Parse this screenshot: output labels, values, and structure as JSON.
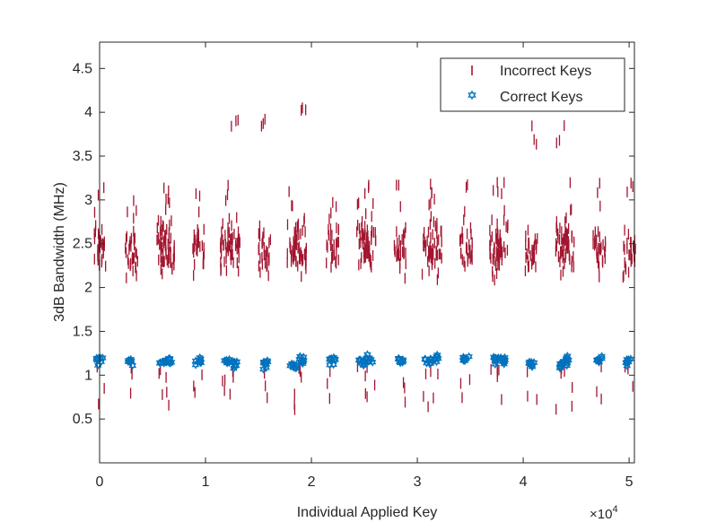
{
  "chart_data": {
    "type": "scatter",
    "title": "",
    "xlabel": "Individual Applied Key",
    "ylabel": "3dB Bandwidth (MHz)",
    "x_exponent_label": "×10",
    "x_exponent_power": "4",
    "xlim": [
      0,
      5.05
    ],
    "ylim": [
      0,
      4.8
    ],
    "x_ticks": [
      "0",
      "1",
      "2",
      "3",
      "4",
      "5"
    ],
    "y_ticks": [
      "0.5",
      "1",
      "1.5",
      "2",
      "2.5",
      "3",
      "3.5",
      "4",
      "4.5"
    ],
    "grid": false,
    "legend_position": "top-right",
    "clusters_x": [
      0.0,
      0.3,
      0.6,
      0.65,
      0.93,
      1.2,
      1.27,
      1.56,
      1.83,
      1.9,
      2.2,
      2.48,
      2.55,
      2.84,
      3.1,
      3.17,
      3.46,
      3.74,
      3.8,
      4.08,
      4.36,
      4.42,
      4.72,
      5.0
    ],
    "series": [
      {
        "name": "Incorrect Keys",
        "marker": "vertical-line",
        "color": "#A2142F",
        "center_y": [
          2.45,
          2.4,
          2.5,
          2.45,
          2.45,
          2.45,
          2.5,
          2.4,
          2.45,
          2.45,
          2.45,
          2.5,
          2.45,
          2.45,
          2.45,
          2.45,
          2.45,
          2.45,
          2.45,
          2.45,
          2.5,
          2.45,
          2.45,
          2.4
        ],
        "range": [
          [
            0.65,
            3.2
          ],
          [
            0.6,
            3.2
          ],
          [
            0.6,
            3.2
          ],
          [
            0.6,
            3.2
          ],
          [
            0.6,
            3.2
          ],
          [
            0.6,
            3.2
          ],
          [
            0.6,
            3.95
          ],
          [
            0.6,
            3.95
          ],
          [
            0.6,
            3.2
          ],
          [
            0.6,
            4.1
          ],
          [
            0.6,
            3.2
          ],
          [
            0.6,
            3.2
          ],
          [
            0.6,
            3.2
          ],
          [
            0.6,
            3.2
          ],
          [
            0.6,
            3.2
          ],
          [
            0.6,
            3.2
          ],
          [
            0.6,
            3.2
          ],
          [
            0.6,
            3.2
          ],
          [
            0.6,
            3.2
          ],
          [
            0.6,
            3.95
          ],
          [
            0.6,
            3.95
          ],
          [
            0.6,
            3.2
          ],
          [
            0.6,
            3.2
          ],
          [
            0.6,
            3.25
          ]
        ]
      },
      {
        "name": "Correct Keys",
        "marker": "hexagram",
        "color": "#0072BD",
        "center_y": [
          1.17,
          1.15,
          1.15,
          1.18,
          1.17,
          1.16,
          1.14,
          1.12,
          1.1,
          1.17,
          1.17,
          1.16,
          1.18,
          1.18,
          1.15,
          1.19,
          1.19,
          1.19,
          1.17,
          1.12,
          1.12,
          1.19,
          1.19,
          1.16
        ]
      }
    ]
  }
}
